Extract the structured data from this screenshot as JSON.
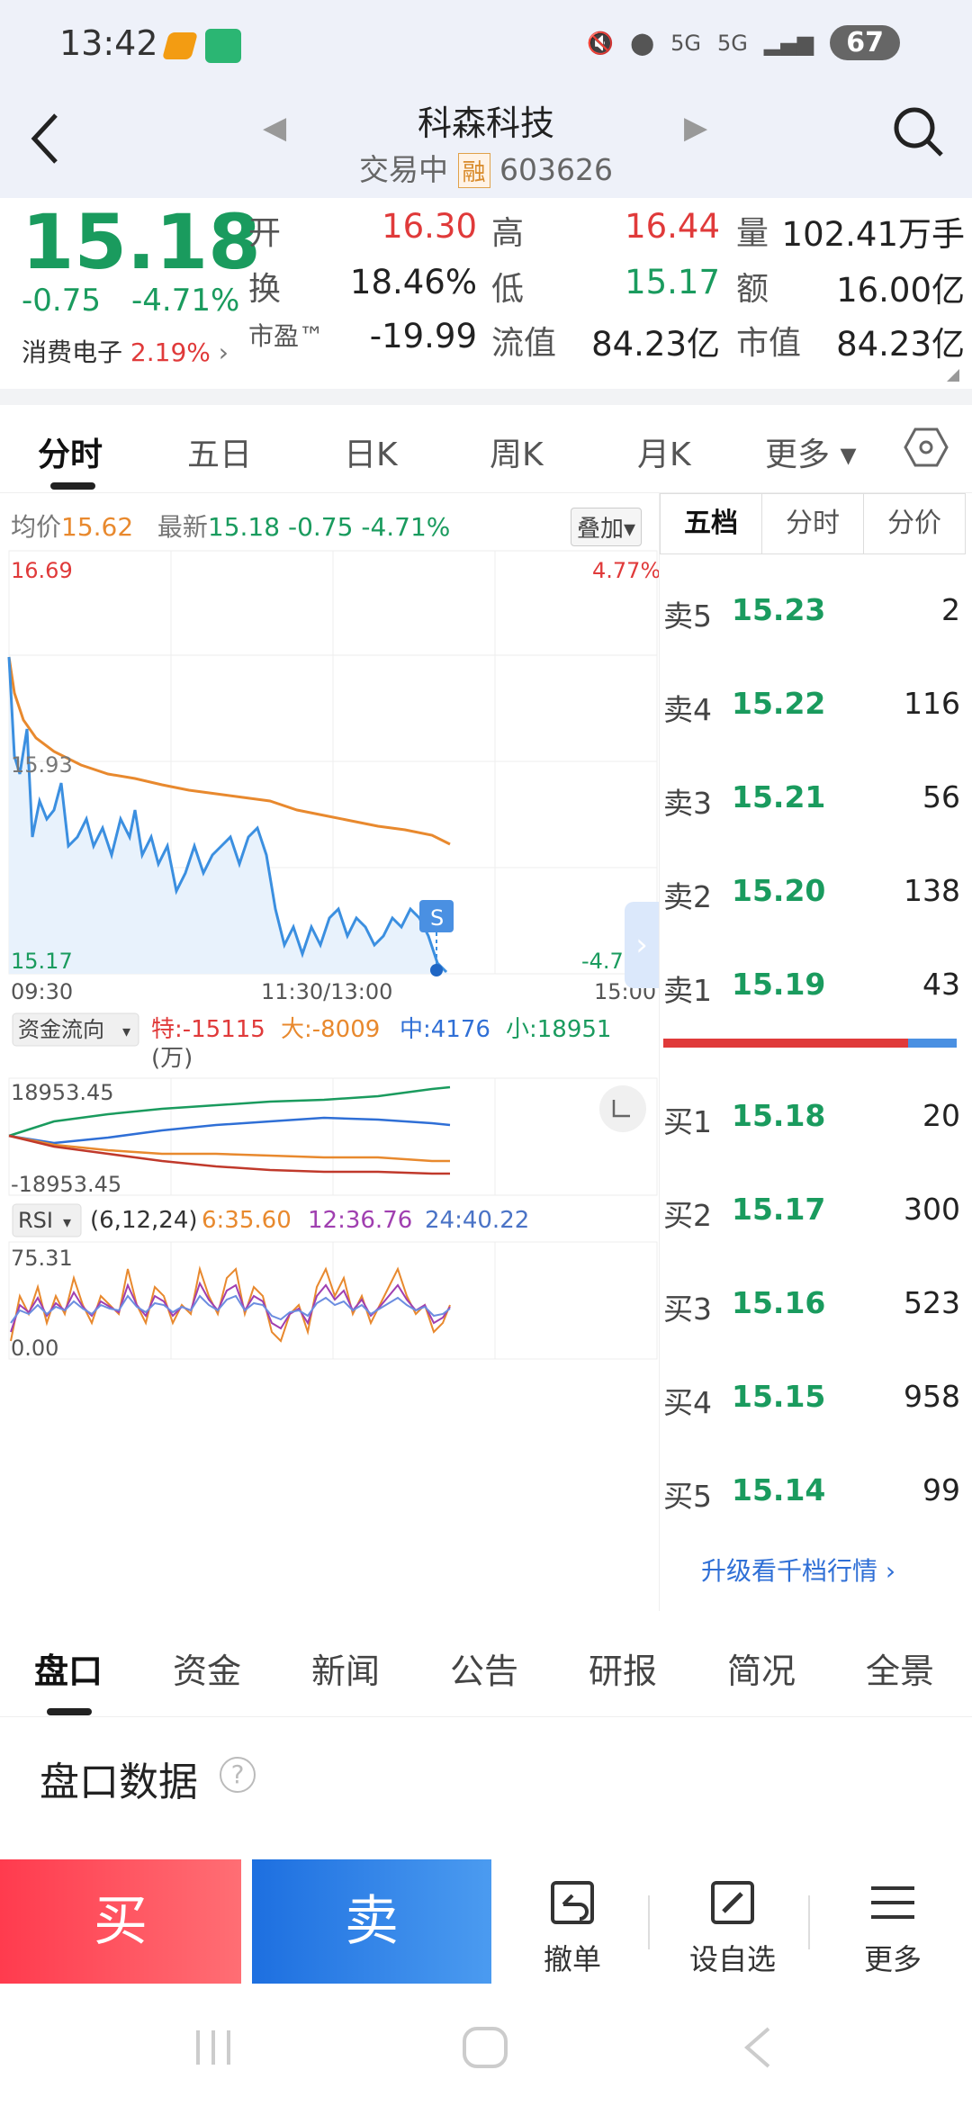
{
  "status_bar": {
    "time": "13:42",
    "battery": "67",
    "net1": "5G",
    "net2": "5G"
  },
  "header": {
    "title": "科森科技",
    "status": "交易中",
    "badge": "融",
    "code": "603626"
  },
  "quote": {
    "price": "15.18",
    "change": "-0.75",
    "change_pct": "-4.71%",
    "sector_name": "消费电子",
    "sector_pct": "2.19%",
    "open_label": "开",
    "open": "16.30",
    "high_label": "高",
    "high": "16.44",
    "volume_label": "量",
    "volume": "102.41万手",
    "turnover_label": "换",
    "turnover": "18.46%",
    "low_label": "低",
    "low": "15.17",
    "amount_label": "额",
    "amount": "16.00亿",
    "pe_label": "市盈™",
    "pe": "-19.99",
    "float_label": "流值",
    "float_cap": "84.23亿",
    "mcap_label": "市值",
    "mcap": "84.23亿"
  },
  "tabs": [
    "分时",
    "五日",
    "日K",
    "周K",
    "月K",
    "更多 ▾"
  ],
  "intraday": {
    "avg_label": "均价",
    "avg": "15.62",
    "latest_label": "最新",
    "latest": "15.18",
    "change": "-0.75",
    "pct": "-4.71%",
    "overlay_btn": "叠加",
    "y_top": "16.69",
    "y_mid": "15.93",
    "y_bottom": "15.17",
    "pct_top": "4.77%",
    "pct_bottom": "-4.77%",
    "t_start": "09:30",
    "t_mid": "11:30/13:00",
    "t_end": "15:00",
    "marker": "S"
  },
  "fund_flow": {
    "label": "资金流向",
    "te": "特:-15115",
    "da": "大:-8009",
    "zhong": "中:4176",
    "xiao": "小:18951",
    "unit": "(万)",
    "top": "18953.45",
    "bottom": "-18953.45"
  },
  "rsi": {
    "label": "RSI",
    "params": "(6,12,24)",
    "r6": "6:35.60",
    "r12": "12:36.76",
    "r24": "24:40.22",
    "top": "75.31",
    "bottom": "0.00"
  },
  "book": {
    "tabs": [
      "五档",
      "分时",
      "分价"
    ],
    "asks": [
      {
        "label": "卖5",
        "price": "15.23",
        "vol": "2"
      },
      {
        "label": "卖4",
        "price": "15.22",
        "vol": "116"
      },
      {
        "label": "卖3",
        "price": "15.21",
        "vol": "56"
      },
      {
        "label": "卖2",
        "price": "15.20",
        "vol": "138"
      },
      {
        "label": "卖1",
        "price": "15.19",
        "vol": "43"
      }
    ],
    "bids": [
      {
        "label": "买1",
        "price": "15.18",
        "vol": "20"
      },
      {
        "label": "买2",
        "price": "15.17",
        "vol": "300"
      },
      {
        "label": "买3",
        "price": "15.16",
        "vol": "523"
      },
      {
        "label": "买4",
        "price": "15.15",
        "vol": "958"
      },
      {
        "label": "买5",
        "price": "15.14",
        "vol": "99"
      }
    ],
    "upgrade": "升级看千档行情 ›"
  },
  "bottom_tabs": [
    "盘口",
    "资金",
    "新闻",
    "公告",
    "研报",
    "简况",
    "全景"
  ],
  "section_title": "盘口数据",
  "actions": {
    "buy": "买",
    "sell": "卖",
    "cancel": "撤单",
    "watch": "设自选",
    "more": "更多"
  },
  "colors": {
    "up": "#e03a3a",
    "down": "#1a9b5e",
    "avg_line": "#e8892e",
    "price_line": "#3b8fe0"
  }
}
